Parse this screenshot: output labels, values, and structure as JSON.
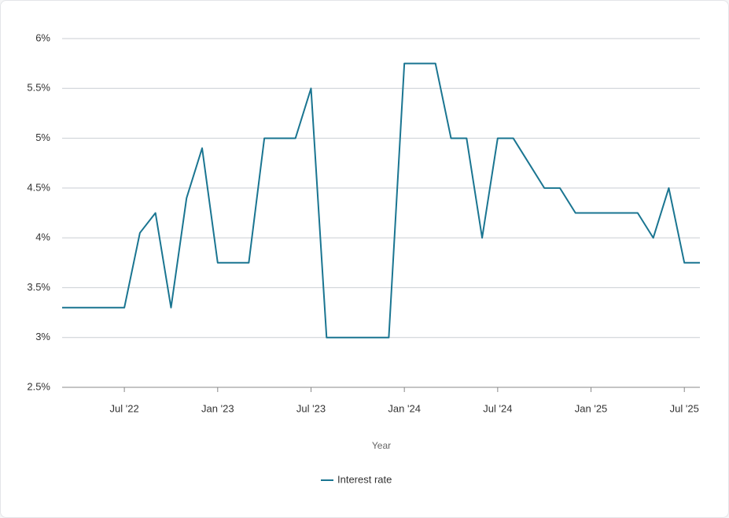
{
  "chart_data": {
    "type": "line",
    "x_label": "Year",
    "x": [
      "2022-03",
      "2022-04",
      "2022-05",
      "2022-06",
      "2022-07",
      "2022-08",
      "2022-09",
      "2022-10",
      "2022-11",
      "2022-12",
      "2023-01",
      "2023-02",
      "2023-03",
      "2023-04",
      "2023-05",
      "2023-06",
      "2023-07",
      "2023-08",
      "2023-09",
      "2023-10",
      "2023-11",
      "2023-12",
      "2024-01",
      "2024-02",
      "2024-03",
      "2024-04",
      "2024-05",
      "2024-06",
      "2024-07",
      "2024-08",
      "2024-09",
      "2024-10",
      "2024-11",
      "2024-12",
      "2025-01",
      "2025-02",
      "2025-03",
      "2025-04",
      "2025-05",
      "2025-06",
      "2025-07",
      "2025-08"
    ],
    "series": [
      {
        "name": "Interest rate",
        "color": "#1a7591",
        "values": [
          3.3,
          3.3,
          3.3,
          3.3,
          3.3,
          4.05,
          4.25,
          3.3,
          4.4,
          4.9,
          3.75,
          3.75,
          3.75,
          5.0,
          5.0,
          5.0,
          5.5,
          3.0,
          3.0,
          3.0,
          3.0,
          3.0,
          5.75,
          5.75,
          5.75,
          5.0,
          5.0,
          4.0,
          5.0,
          5.0,
          4.75,
          4.5,
          4.5,
          4.25,
          4.25,
          4.25,
          4.25,
          4.25,
          4.0,
          4.5,
          3.75,
          3.75
        ]
      }
    ],
    "xlim": [
      "2022-03",
      "2025-08"
    ],
    "xticks": [
      {
        "value": "2022-07",
        "label": "Jul '22"
      },
      {
        "value": "2023-01",
        "label": "Jan '23"
      },
      {
        "value": "2023-07",
        "label": "Jul '23"
      },
      {
        "value": "2024-01",
        "label": "Jan '24"
      },
      {
        "value": "2024-07",
        "label": "Jul '24"
      },
      {
        "value": "2025-01",
        "label": "Jan '25"
      },
      {
        "value": "2025-07",
        "label": "Jul '25"
      }
    ],
    "ylim": [
      2.5,
      6
    ],
    "yticks": [
      {
        "value": 2.5,
        "label": "2.5%"
      },
      {
        "value": 3,
        "label": "3%"
      },
      {
        "value": 3.5,
        "label": "3.5%"
      },
      {
        "value": 4,
        "label": "4%"
      },
      {
        "value": 4.5,
        "label": "4.5%"
      },
      {
        "value": 5,
        "label": "5%"
      },
      {
        "value": 5.5,
        "label": "5.5%"
      },
      {
        "value": 6,
        "label": "6%"
      }
    ],
    "grid": true,
    "legend": "bottom"
  }
}
